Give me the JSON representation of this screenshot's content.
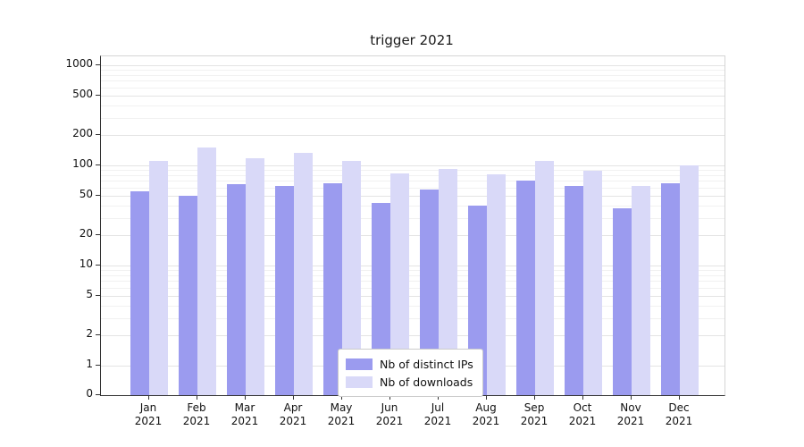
{
  "chart_data": {
    "type": "bar",
    "title": "trigger 2021",
    "categories": [
      "Jan 2021",
      "Feb 2021",
      "Mar 2021",
      "Apr 2021",
      "May 2021",
      "Jun 2021",
      "Jul 2021",
      "Aug 2021",
      "Sep 2021",
      "Oct 2021",
      "Nov 2021",
      "Dec 2021"
    ],
    "series": [
      {
        "name": "Nb of distinct IPs",
        "color": "#9b9bef",
        "values": [
          55,
          50,
          65,
          62,
          66,
          42,
          57,
          40,
          70,
          62,
          37,
          66
        ]
      },
      {
        "name": "Nb of downloads",
        "color": "#d9d9f8",
        "values": [
          110,
          150,
          118,
          132,
          110,
          83,
          93,
          81,
          110,
          89,
          62,
          100
        ]
      }
    ],
    "yticks": [
      0,
      1,
      2,
      5,
      10,
      20,
      50,
      100,
      200,
      500,
      1000
    ],
    "ylim": [
      0,
      1000
    ],
    "yscale": "symlog",
    "grid": "horizontal",
    "legend_position": "lower center"
  }
}
